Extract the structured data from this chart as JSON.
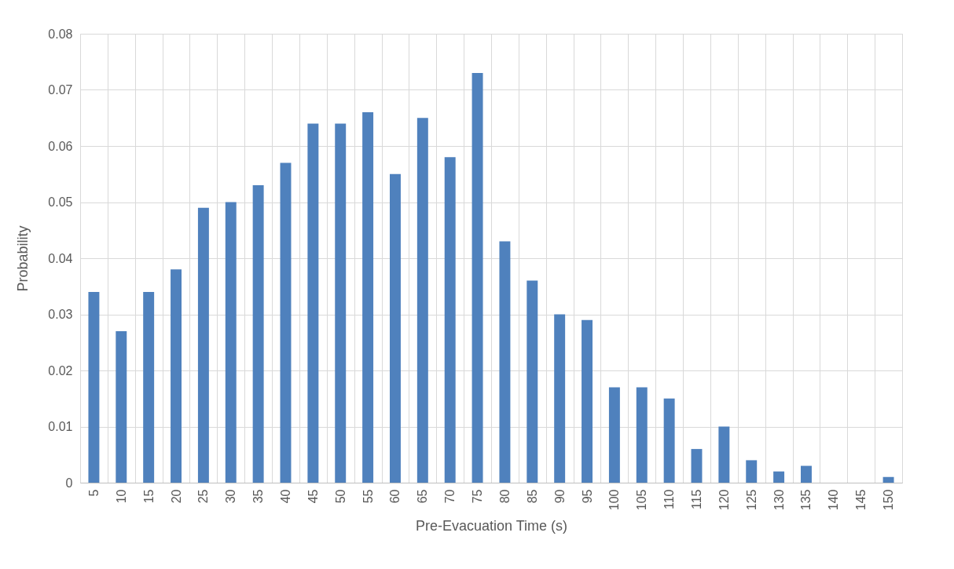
{
  "chart_data": {
    "type": "bar",
    "xlabel": "Pre-Evacuation Time (s)",
    "ylabel": "Probability",
    "categories": [
      "5",
      "10",
      "15",
      "20",
      "25",
      "30",
      "35",
      "40",
      "45",
      "50",
      "55",
      "60",
      "65",
      "70",
      "75",
      "80",
      "85",
      "90",
      "95",
      "100",
      "105",
      "110",
      "115",
      "120",
      "125",
      "130",
      "135",
      "140",
      "145",
      "150"
    ],
    "values": [
      0.034,
      0.027,
      0.034,
      0.038,
      0.049,
      0.05,
      0.053,
      0.057,
      0.064,
      0.064,
      0.066,
      0.055,
      0.065,
      0.058,
      0.073,
      0.043,
      0.036,
      0.03,
      0.029,
      0.017,
      0.017,
      0.015,
      0.006,
      0.01,
      0.004,
      0.002,
      0.003,
      0,
      0,
      0.001
    ],
    "color": "#4f81bd",
    "ylim": [
      0,
      0.08
    ],
    "yticks": [
      0,
      0.01,
      0.02,
      0.03,
      0.04,
      0.05,
      0.06,
      0.07,
      0.08
    ],
    "grid": true
  }
}
